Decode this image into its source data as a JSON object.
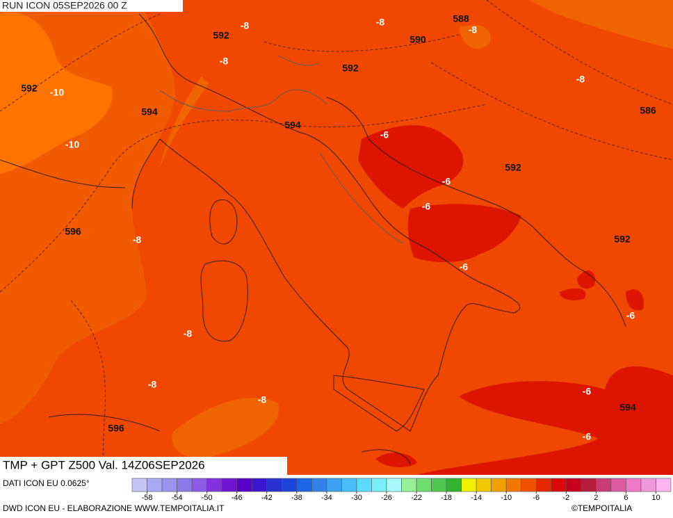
{
  "header": {
    "title": "RUN ICON 05SEP2026 00 Z"
  },
  "footer": {
    "title": "TMP + GPT Z500 Val. 14Z06SEP2026",
    "source": "DATI ICON EU 0.0625°",
    "credit": "DWD ICON EU - ELABORAZIONE WWW.TEMPOITALIA.IT",
    "copyright": "©TEMPOITALIA"
  },
  "contour_labels": [
    "592",
    "-8",
    "-8",
    "588",
    "-8",
    "590",
    "-8",
    "592",
    "-8",
    "592",
    "-10",
    "594",
    "586",
    "594",
    "-6",
    "-10",
    "592",
    "-6",
    "-6",
    "596",
    "-8",
    "592",
    "-6",
    "-6",
    "-8",
    "-8",
    "-6",
    "-8",
    "594",
    "596",
    "-6"
  ],
  "legend": {
    "range": [
      -60,
      12
    ],
    "ticks": [
      -58,
      -54,
      -50,
      -46,
      -42,
      -38,
      -34,
      -30,
      -26,
      -22,
      -18,
      -14,
      -10,
      -6,
      -2,
      2,
      6,
      10
    ],
    "colors": [
      "#c4c4f5",
      "#aaaaf2",
      "#9a92ee",
      "#8c78e6",
      "#8c5ae6",
      "#8232dc",
      "#6e14d2",
      "#5a00c8",
      "#3c14d2",
      "#2832d2",
      "#1e46dc",
      "#1e64e6",
      "#3282e6",
      "#3ca0f0",
      "#46bef5",
      "#5adcfa",
      "#78f0fa",
      "#a8fafa",
      "#96f096",
      "#6edc6e",
      "#50c850",
      "#32b432",
      "#f0f000",
      "#f0c800",
      "#f0a000",
      "#f07800",
      "#f05000",
      "#e62800",
      "#dc0a0a",
      "#c8001e",
      "#b41e3c",
      "#c83c78",
      "#dc5aa0",
      "#f078c8",
      "#f096dc",
      "#fab4f0"
    ]
  }
}
